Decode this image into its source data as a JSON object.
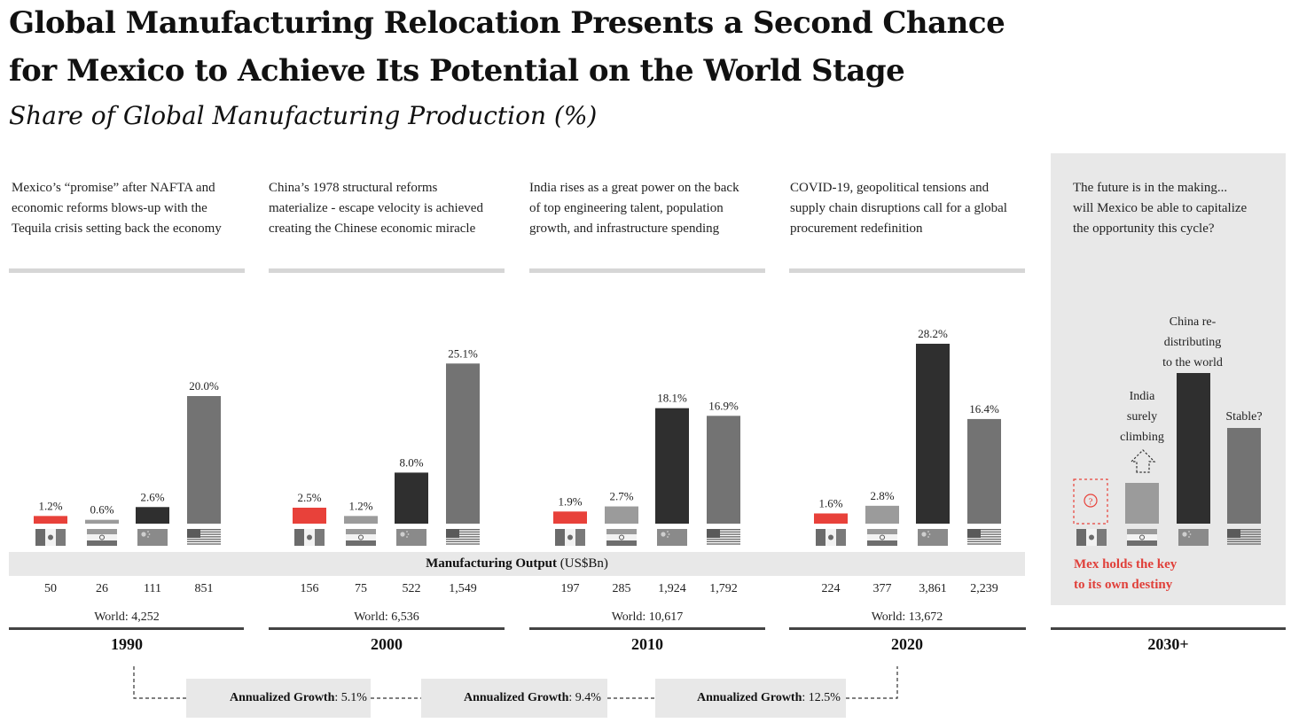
{
  "title_line1": "Global Manufacturing Relocation Presents a Second Chance",
  "title_line2": "for Mexico to Achieve Its Potential on the World Stage",
  "subtitle": "Share of Global Manufacturing Production (%)",
  "descriptions": [
    [
      "Mexico’s “promise” after NAFTA and",
      "economic reforms blows-up with the",
      "Tequila crisis setting back the economy"
    ],
    [
      "China’s 1978 structural reforms",
      "materialize - escape velocity is achieved",
      "creating the Chinese economic miracle"
    ],
    [
      "India rises as a great power on the back",
      "of top engineering talent, population",
      "growth, and infrastructure spending"
    ],
    [
      "COVID-19, geopolitical tensions and",
      "supply chain disruptions call for a global",
      "procurement redefinition"
    ],
    [
      "The future is in the making...",
      "will Mexico be able to capitalize",
      "the opportunity this cycle?"
    ]
  ],
  "manufacturing_output": {
    "bold": "Manufacturing Output",
    "rest": " (US$Bn)"
  },
  "future": {
    "india_note": [
      "India",
      "surely",
      "climbing"
    ],
    "china_note": [
      "China re-",
      "distributing",
      "to the world"
    ],
    "us_note": "Stable?",
    "question_mark": "?",
    "mexico_note": [
      "Mex holds the key",
      "to its own destiny"
    ]
  },
  "growth": [
    {
      "country_flag": "mexico-flag",
      "label": "Annualized Growth",
      "value": ": 5.1%"
    },
    {
      "country_flag": "india-flag",
      "label": "Annualized Growth",
      "value": ": 9.4%"
    },
    {
      "country_flag": "china-flag",
      "label": "Annualized Growth",
      "value": ": 12.5%"
    }
  ],
  "colors": {
    "mexico": "#e8413a",
    "india": "#9b9b9b",
    "china": "#2f2f2f",
    "usa": "#737373",
    "panel": "#e8e8e8",
    "accent_red": "#e0403a"
  },
  "chart_data": {
    "type": "bar",
    "title": "Share of Global Manufacturing Production (%)",
    "series_names": [
      "Mexico",
      "India",
      "China",
      "USA"
    ],
    "periods": [
      {
        "year": "1990",
        "shares": [
          1.2,
          0.6,
          2.6,
          20.0
        ],
        "share_labels": [
          "1.2%",
          "0.6%",
          "2.6%",
          "20.0%"
        ],
        "output": [
          "50",
          "26",
          "111",
          "851"
        ],
        "world": "World: 4,252"
      },
      {
        "year": "2000",
        "shares": [
          2.5,
          1.2,
          8.0,
          25.1
        ],
        "share_labels": [
          "2.5%",
          "1.2%",
          "8.0%",
          "25.1%"
        ],
        "output": [
          "156",
          "75",
          "522",
          "1,549"
        ],
        "world": "World: 6,536"
      },
      {
        "year": "2010",
        "shares": [
          1.9,
          2.7,
          18.1,
          16.9
        ],
        "share_labels": [
          "1.9%",
          "2.7%",
          "18.1%",
          "16.9%"
        ],
        "output": [
          "197",
          "285",
          "1,924",
          "1,792"
        ],
        "world": "World: 10,617"
      },
      {
        "year": "2020",
        "shares": [
          1.6,
          2.8,
          28.2,
          16.4
        ],
        "share_labels": [
          "1.6%",
          "2.8%",
          "28.2%",
          "16.4%"
        ],
        "output": [
          "224",
          "377",
          "3,861",
          "2,239"
        ],
        "world": "World: 13,672"
      }
    ],
    "future_period": {
      "year": "2030+"
    }
  }
}
